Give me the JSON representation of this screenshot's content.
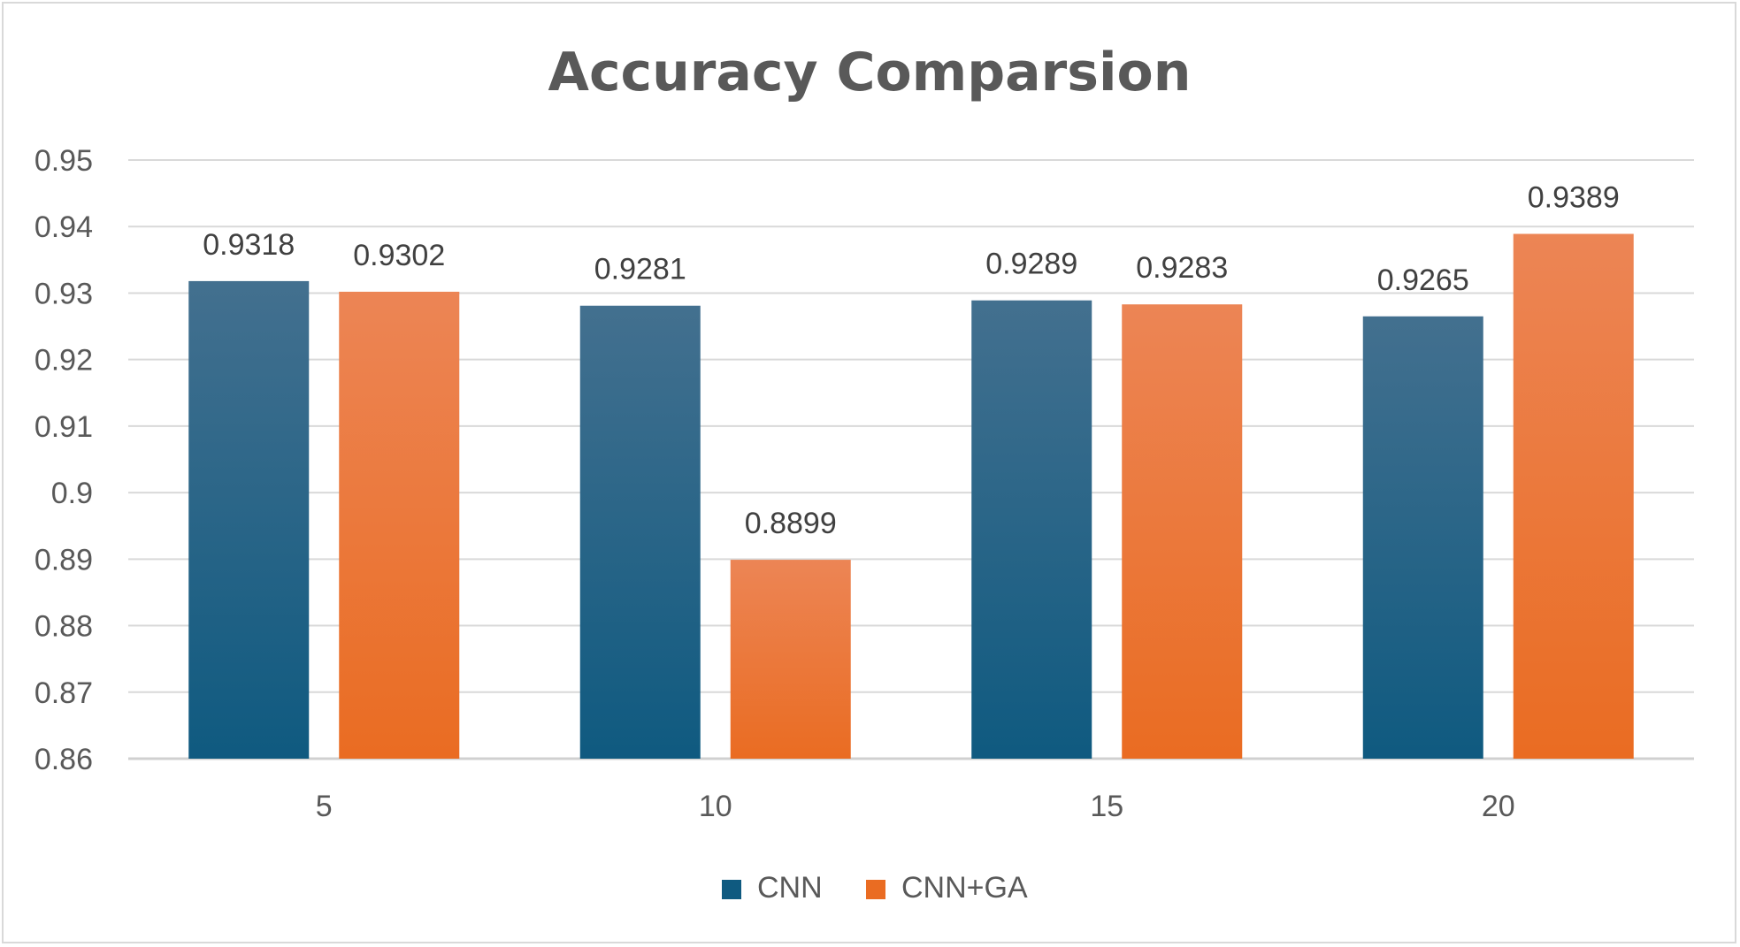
{
  "chart_data": {
    "type": "bar",
    "title": "Accuracy Comparsion",
    "xlabel": "",
    "ylabel": "",
    "categories": [
      "5",
      "10",
      "15",
      "20"
    ],
    "ylim": [
      0.86,
      0.95
    ],
    "ytick_labels": [
      "0.86",
      "0.87",
      "0.88",
      "0.89",
      "0.9",
      "0.91",
      "0.92",
      "0.93",
      "0.94",
      "0.95"
    ],
    "grid": true,
    "legend_position": "bottom",
    "series": [
      {
        "name": "CNN",
        "values": [
          0.9318,
          0.9281,
          0.9289,
          0.9265
        ],
        "labels": [
          "0.9318",
          "0.9281",
          "0.9289",
          "0.9265"
        ],
        "color": "#0f5a80",
        "color_light": "#43708f"
      },
      {
        "name": "CNN+GA",
        "values": [
          0.9302,
          0.8899,
          0.9283,
          0.9389
        ],
        "labels": [
          "0.9302",
          "0.8899",
          "0.9283",
          "0.9389"
        ],
        "color": "#ea6c22",
        "color_light": "#ec8555"
      }
    ]
  }
}
